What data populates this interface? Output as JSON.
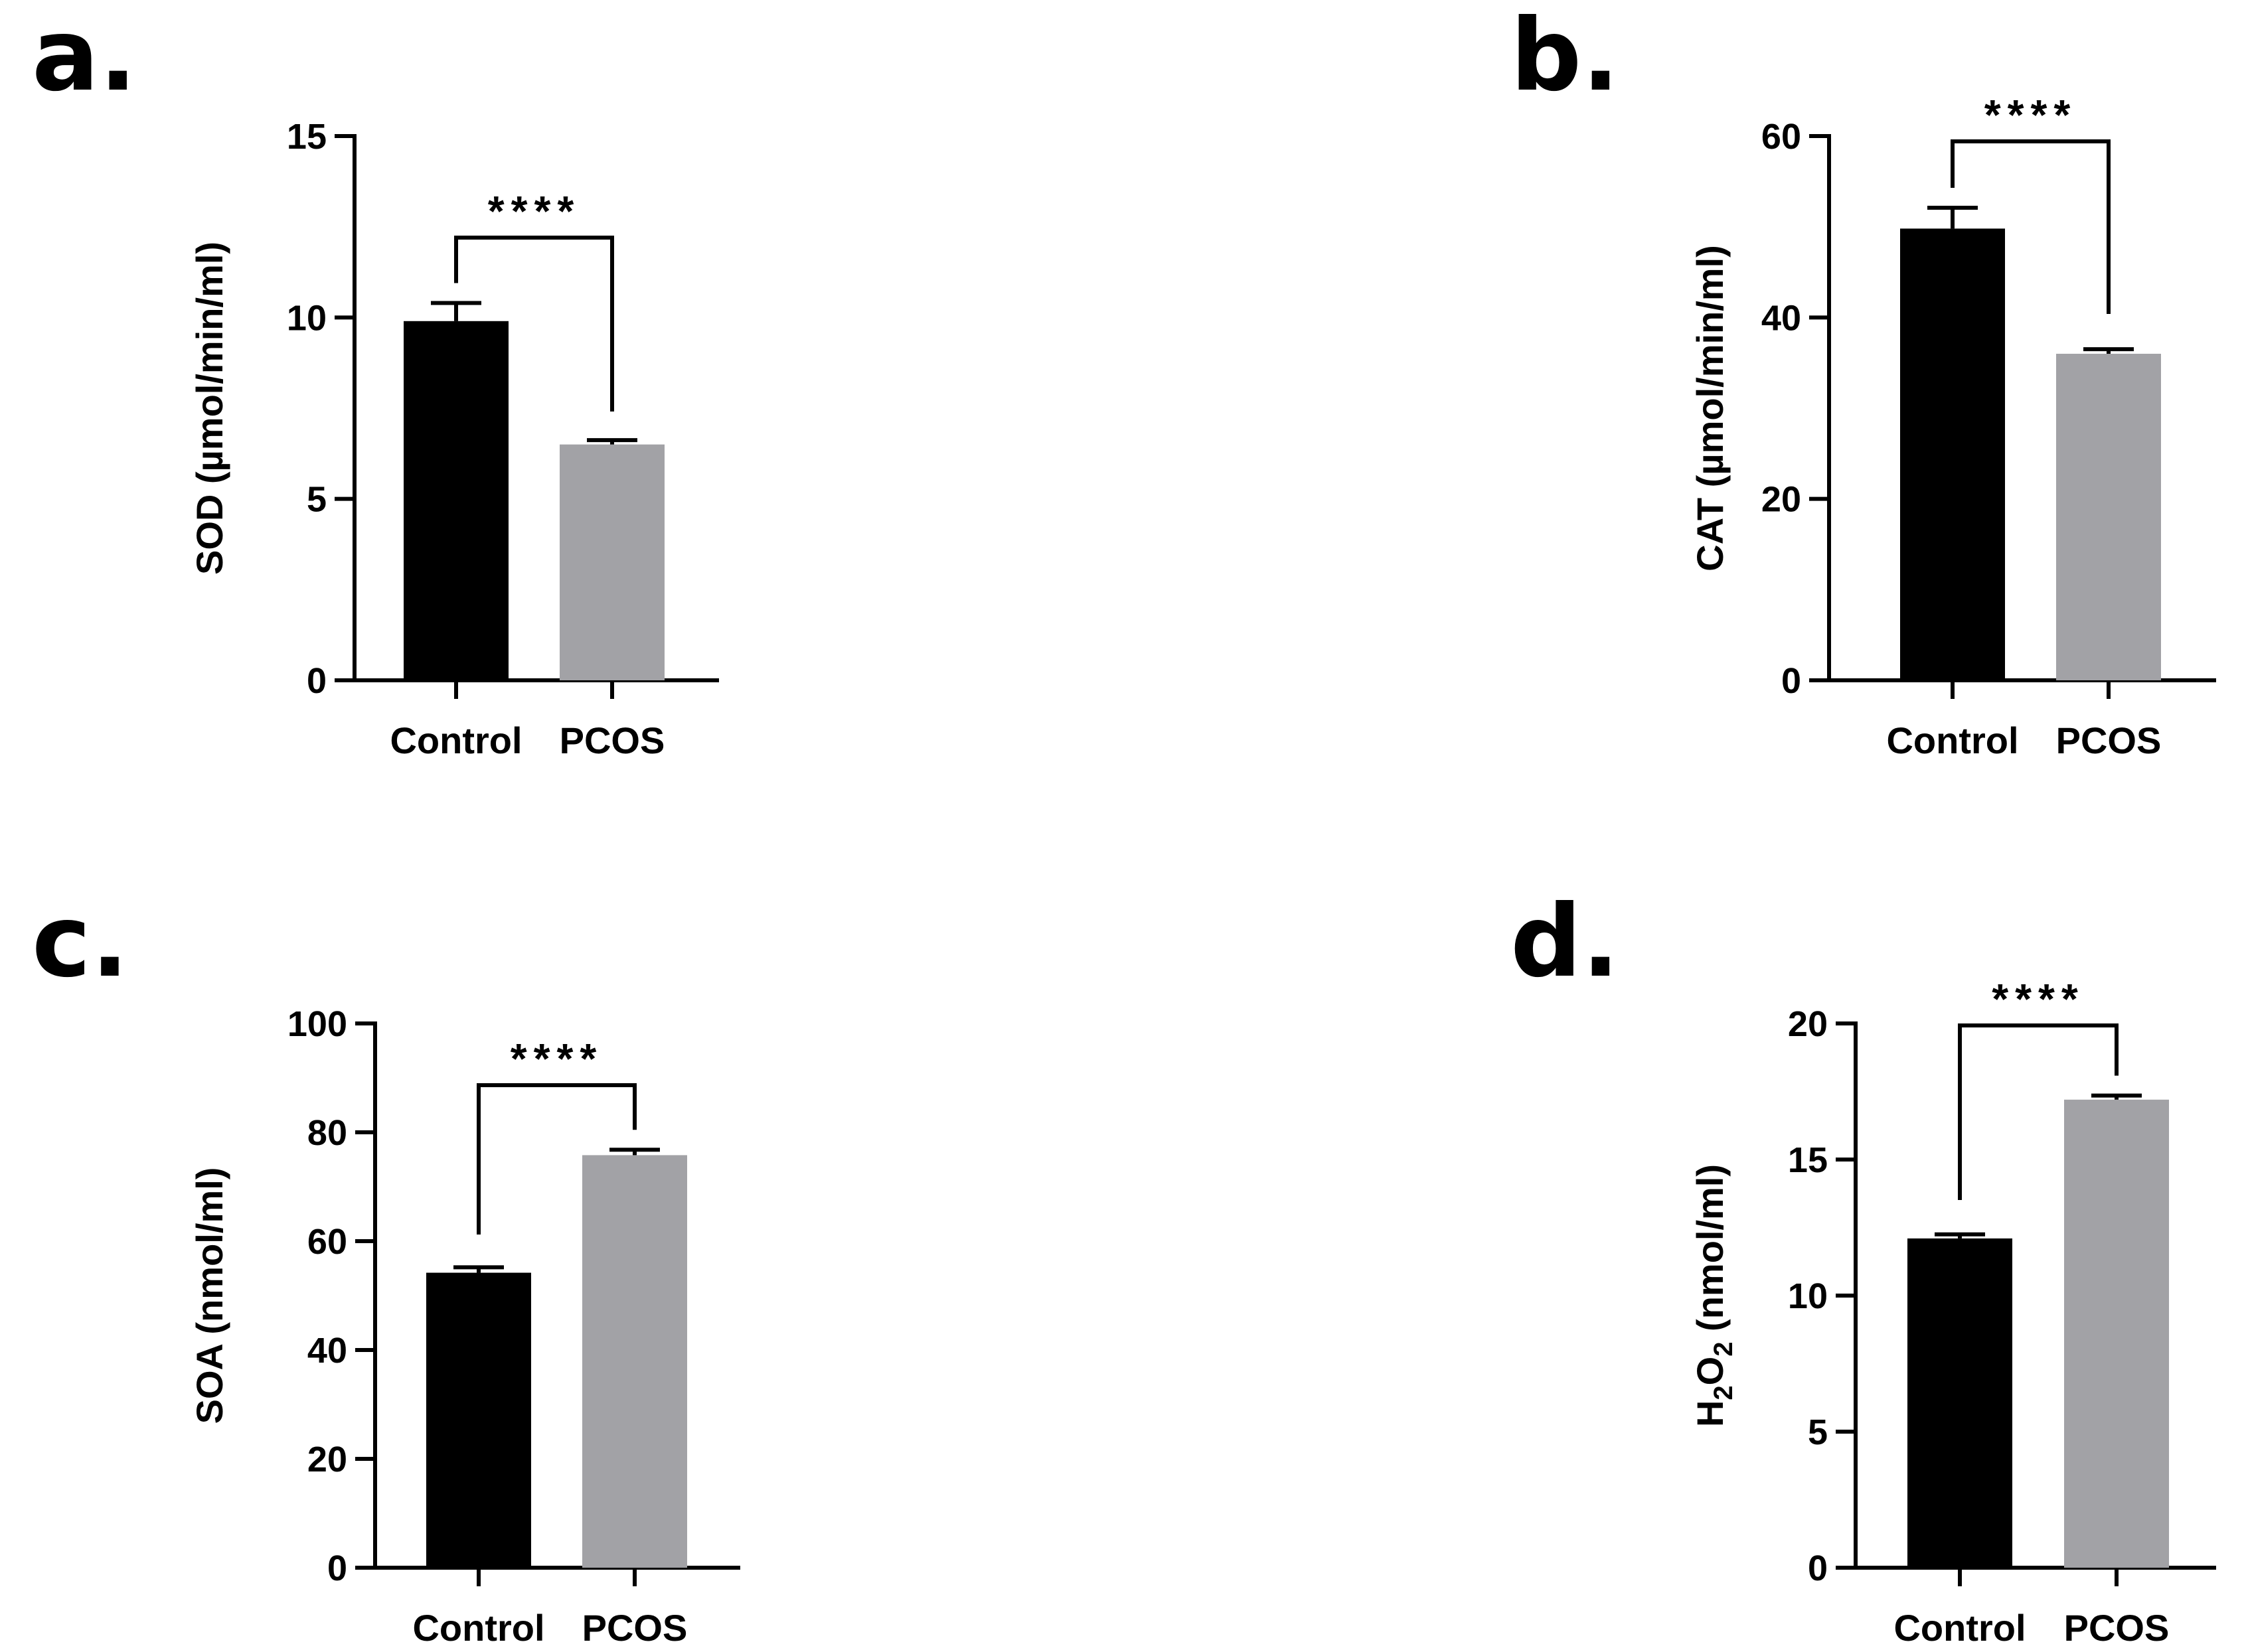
{
  "chart_data": [
    {
      "type": "bar",
      "panel": "a.",
      "categories": [
        "Control",
        "PCOS"
      ],
      "values": [
        9.9,
        6.5
      ],
      "errors": [
        0.5,
        0.12
      ],
      "colors": [
        "#000000",
        "#a2a2a6"
      ],
      "ylabel": "SOD (µmol/min/ml)",
      "ylim": [
        0,
        15
      ],
      "yticks": [
        0,
        5,
        10,
        15
      ],
      "significance": "****"
    },
    {
      "type": "bar",
      "panel": "b.",
      "categories": [
        "Control",
        "PCOS"
      ],
      "values": [
        49.8,
        36.0
      ],
      "errors": [
        2.3,
        0.5
      ],
      "colors": [
        "#000000",
        "#a2a2a6"
      ],
      "ylabel": "CAT (µmol/min/ml)",
      "ylim": [
        0,
        60
      ],
      "yticks": [
        0,
        20,
        40,
        60
      ],
      "significance": "****"
    },
    {
      "type": "bar",
      "panel": "c.",
      "categories": [
        "Control",
        "PCOS"
      ],
      "values": [
        54.2,
        75.8
      ],
      "errors": [
        1.0,
        1.0
      ],
      "colors": [
        "#000000",
        "#a2a2a6"
      ],
      "ylabel": "SOA (nmol/ml)",
      "ylim": [
        0,
        100
      ],
      "yticks": [
        0,
        20,
        40,
        60,
        80,
        100
      ],
      "significance": "****"
    },
    {
      "type": "bar",
      "panel": "d.",
      "categories": [
        "Control",
        "PCOS"
      ],
      "values": [
        12.1,
        17.2
      ],
      "errors": [
        0.15,
        0.15
      ],
      "colors": [
        "#000000",
        "#a2a2a6"
      ],
      "ylabel_parts": [
        "H",
        "2",
        "O",
        "2",
        " (nmol/ml)"
      ],
      "ylim": [
        0,
        20
      ],
      "yticks": [
        0,
        5,
        10,
        15,
        20
      ],
      "significance": "****"
    }
  ]
}
